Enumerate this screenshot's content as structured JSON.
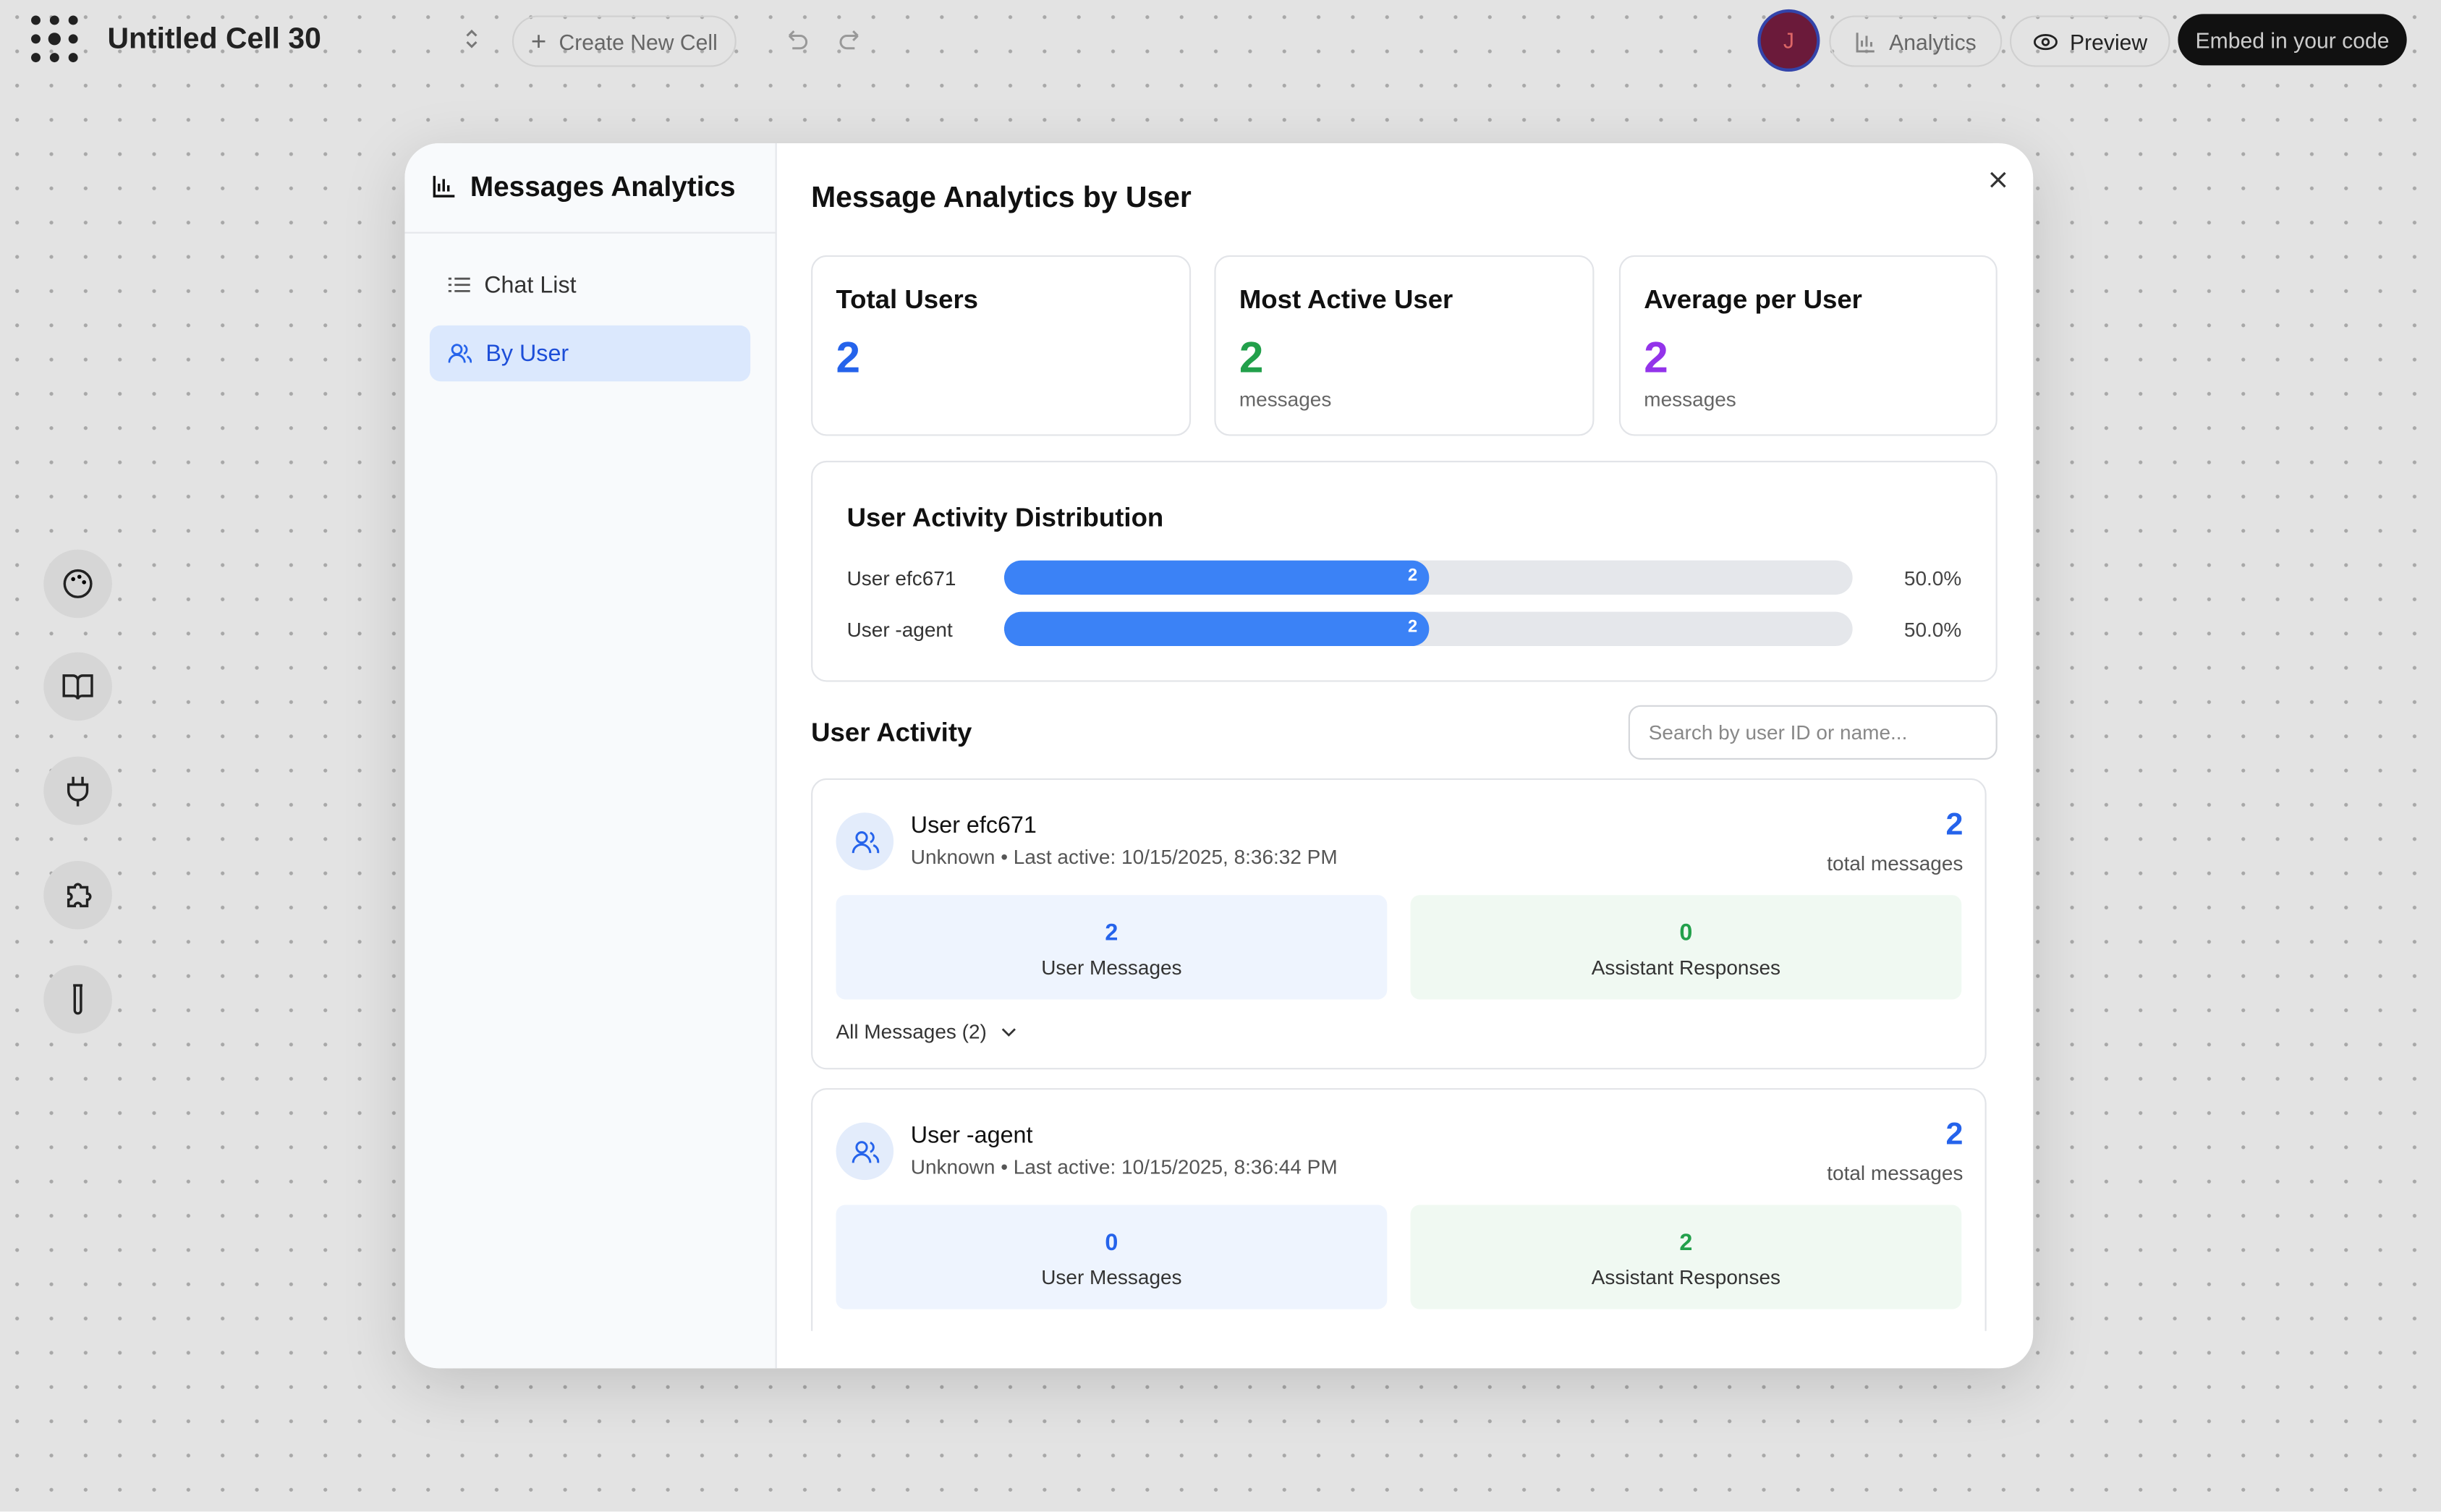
{
  "header": {
    "title": "Untitled Cell 30",
    "create_button": "Create New Cell",
    "avatar": "J",
    "analytics_button": "Analytics",
    "preview_button": "Preview",
    "embed_button": "Embed in your code"
  },
  "sidebar": {
    "title": "Messages Analytics",
    "nav": [
      "Chat List",
      "By User"
    ]
  },
  "main": {
    "title": "Message Analytics by User",
    "stats": [
      {
        "title": "Total Users",
        "value": 2
      },
      {
        "title": "Most Active User",
        "value": 2,
        "unit": "messages"
      },
      {
        "title": "Average per User",
        "value": 2,
        "unit": "messages"
      }
    ],
    "distribution": {
      "title": "User Activity Distribution",
      "rows": [
        {
          "name": "User efc671",
          "count": 2,
          "percent": 50,
          "percent_label": "50.0%"
        },
        {
          "name": "User -agent",
          "count": 2,
          "percent": 50,
          "percent_label": "50.0%"
        }
      ]
    },
    "activity": {
      "title": "User Activity",
      "search_placeholder": "Search by user ID or name...",
      "users": [
        {
          "name": "User efc671",
          "detail": "Unknown • Last active: 10/15/2025, 8:36:32 PM",
          "total": 2,
          "total_label": "total messages",
          "user_messages": 2,
          "user_messages_label": "User Messages",
          "assistant_responses": 0,
          "assistant_responses_label": "Assistant Responses",
          "all_messages": "All Messages (2)"
        },
        {
          "name": "User -agent",
          "detail": "Unknown • Last active: 10/15/2025, 8:36:44 PM",
          "total": 2,
          "total_label": "total messages",
          "user_messages": 0,
          "user_messages_label": "User Messages",
          "assistant_responses": 2,
          "assistant_responses_label": "Assistant Responses"
        }
      ]
    }
  }
}
